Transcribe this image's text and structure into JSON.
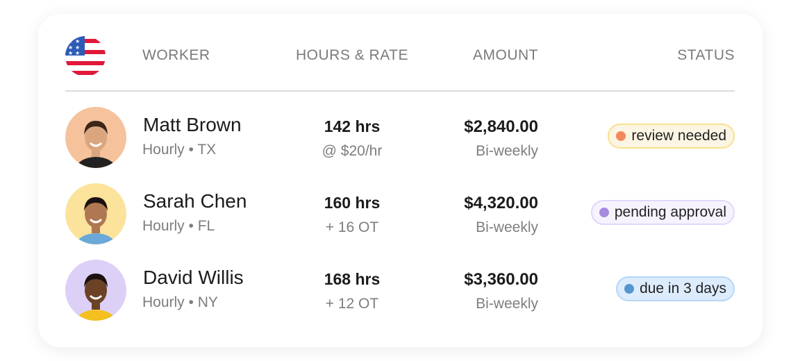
{
  "header": {
    "country_flag": "us-flag-icon",
    "worker": "WORKER",
    "hours_rate": "HOURS & RATE",
    "amount": "AMOUNT",
    "status": "STATUS"
  },
  "workers": [
    {
      "name": "Matt Brown",
      "meta": "Hourly • TX",
      "hours": "142 hrs",
      "rate": "@ $20/hr",
      "amount": "$2,840.00",
      "frequency": "Bi-weekly",
      "status": "review needed",
      "avatar_bg": "#f5c29c",
      "badge_bg": "#fdf5e3",
      "badge_border": "#f9e08b",
      "dot": "#f08a5d"
    },
    {
      "name": "Sarah Chen",
      "meta": "Hourly • FL",
      "hours": "160 hrs",
      "rate": "+ 16 OT",
      "amount": "$4,320.00",
      "frequency": "Bi-weekly",
      "status": "pending approval",
      "avatar_bg": "#fbe39b",
      "badge_bg": "#f7f3fe",
      "badge_border": "#e3d6fb",
      "dot": "#a58ae0"
    },
    {
      "name": "David Willis",
      "meta": "Hourly • NY",
      "hours": "168 hrs",
      "rate": "+ 12 OT",
      "amount": "$3,360.00",
      "frequency": "Bi-weekly",
      "status": "due in 3 days",
      "avatar_bg": "#ddd0f7",
      "badge_bg": "#dcecfd",
      "badge_border": "#b5d6f7",
      "dot": "#5596d0"
    }
  ]
}
